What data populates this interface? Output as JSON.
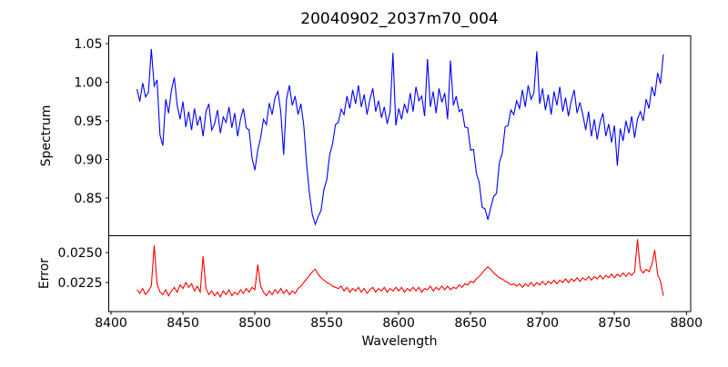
{
  "figure": {
    "title": "20040902_2037m70_004",
    "background_color": "#ffffff",
    "spine_color": "#000000",
    "text_color": "#000000"
  },
  "x_axis": {
    "label": "Wavelength",
    "ticks": [
      8400,
      8450,
      8500,
      8550,
      8600,
      8650,
      8700,
      8750,
      8800
    ],
    "tick_labels": [
      "8400",
      "8450",
      "8500",
      "8550",
      "8600",
      "8650",
      "8700",
      "8750",
      "8800"
    ],
    "xlim": [
      8398.4,
      8803.0
    ]
  },
  "chart_data": [
    {
      "type": "line",
      "panel": "spectrum",
      "title": "20040902_2037m70_004",
      "xlabel": "Wavelength",
      "ylabel": "Spectrum",
      "legend": null,
      "grid": false,
      "line_color": "#0000ff",
      "xlim": [
        8398.4,
        8803.0
      ],
      "ylim": [
        0.8012,
        1.06
      ],
      "yticks": [
        0.85,
        0.9,
        0.95,
        1.0,
        1.05
      ],
      "ytick_labels": [
        "0.85",
        "0.90",
        "0.95",
        "1.00",
        "1.05"
      ],
      "x_start": 8418,
      "x_step": 2,
      "n_points": 184,
      "features_note": "noisy stellar spectrum, continuum ~0.98; broad shallow depression 8455-8495 (~0.95); absorption line 8500 (~0.89); deep absorption 8542 (min ~0.816); deep absorption 8662 (min ~0.822); shallow depression 8730-8766 (~0.93); rises to ~1.04 at 8784",
      "values": [
        0.991,
        0.975,
        0.999,
        0.981,
        0.987,
        1.043,
        0.995,
        1.003,
        0.932,
        0.918,
        0.978,
        0.96,
        0.99,
        1.006,
        0.97,
        0.952,
        0.975,
        0.942,
        0.962,
        0.938,
        0.966,
        0.944,
        0.956,
        0.93,
        0.962,
        0.972,
        0.938,
        0.946,
        0.964,
        0.934,
        0.955,
        0.948,
        0.968,
        0.941,
        0.96,
        0.93,
        0.952,
        0.966,
        0.941,
        0.938,
        0.902,
        0.886,
        0.912,
        0.928,
        0.952,
        0.945,
        0.973,
        0.958,
        0.98,
        0.988,
        0.962,
        0.906,
        0.978,
        0.996,
        0.97,
        0.982,
        0.958,
        0.972,
        0.944,
        0.893,
        0.855,
        0.828,
        0.816,
        0.826,
        0.834,
        0.861,
        0.874,
        0.906,
        0.92,
        0.945,
        0.948,
        0.965,
        0.958,
        0.982,
        0.966,
        0.99,
        0.972,
        0.996,
        0.968,
        0.984,
        0.958,
        0.978,
        0.992,
        0.962,
        0.976,
        0.954,
        0.968,
        0.946,
        0.962,
        1.038,
        0.944,
        0.966,
        0.952,
        0.972,
        0.96,
        0.986,
        0.962,
        0.994,
        0.976,
        0.982,
        0.956,
        1.03,
        0.968,
        0.988,
        0.96,
        0.992,
        0.974,
        0.986,
        0.952,
        1.028,
        0.97,
        0.982,
        0.962,
        0.965,
        0.942,
        0.941,
        0.912,
        0.913,
        0.882,
        0.87,
        0.838,
        0.836,
        0.822,
        0.838,
        0.852,
        0.856,
        0.896,
        0.908,
        0.942,
        0.944,
        0.964,
        0.958,
        0.976,
        0.966,
        0.99,
        0.968,
        0.996,
        0.978,
        0.986,
        1.04,
        0.972,
        0.992,
        0.964,
        0.984,
        0.958,
        0.988,
        0.97,
        0.994,
        0.962,
        0.98,
        0.956,
        0.976,
        0.99,
        0.96,
        0.974,
        0.958,
        0.938,
        0.962,
        0.93,
        0.952,
        0.926,
        0.948,
        0.96,
        0.93,
        0.946,
        0.922,
        0.944,
        0.892,
        0.94,
        0.924,
        0.95,
        0.934,
        0.956,
        0.928,
        0.952,
        0.962,
        0.95,
        0.978,
        0.966,
        0.994,
        0.982,
        1.012,
        0.998,
        1.036
      ]
    },
    {
      "type": "line",
      "panel": "error",
      "title": "",
      "xlabel": "Wavelength",
      "ylabel": "Error",
      "legend": null,
      "grid": false,
      "line_color": "#ff0000",
      "xlim": [
        8398.4,
        8803.0
      ],
      "ylim": [
        0.02008,
        0.0264
      ],
      "yticks": [
        0.0225,
        0.025
      ],
      "ytick_labels": [
        "0.0225",
        "0.0250"
      ],
      "x_start": 8418,
      "x_step": 2,
      "n_points": 184,
      "features_note": "error spectrum ~0.0218 baseline; narrow spikes at 8430 (0.0256), 8464 (0.0247), 8502 (0.0240); broad bumps at 8542 (0.0236) and 8662 (0.0238); slow rise to ~0.0232 near 8760; spikes 8766 (0.0261) and 8778 (0.0252); drops to 0.0214 at end",
      "values": [
        0.0219,
        0.0216,
        0.022,
        0.0215,
        0.0218,
        0.0222,
        0.0256,
        0.0224,
        0.0217,
        0.0215,
        0.0219,
        0.0214,
        0.0218,
        0.0221,
        0.0217,
        0.0223,
        0.022,
        0.0225,
        0.0221,
        0.0224,
        0.0218,
        0.0222,
        0.0217,
        0.0247,
        0.022,
        0.0215,
        0.0218,
        0.0214,
        0.0217,
        0.0213,
        0.0218,
        0.0215,
        0.0219,
        0.0214,
        0.0217,
        0.0215,
        0.0219,
        0.0216,
        0.022,
        0.0217,
        0.0221,
        0.0219,
        0.024,
        0.0222,
        0.0217,
        0.0214,
        0.0218,
        0.0215,
        0.0219,
        0.0216,
        0.022,
        0.0216,
        0.0219,
        0.0215,
        0.0218,
        0.0216,
        0.022,
        0.0222,
        0.0225,
        0.0228,
        0.0231,
        0.0234,
        0.0236,
        0.0232,
        0.0229,
        0.0227,
        0.0225,
        0.0224,
        0.0222,
        0.0221,
        0.022,
        0.0222,
        0.0218,
        0.0221,
        0.0217,
        0.022,
        0.0218,
        0.0221,
        0.0217,
        0.022,
        0.0216,
        0.0219,
        0.0221,
        0.0217,
        0.022,
        0.0218,
        0.0221,
        0.0217,
        0.022,
        0.0218,
        0.0221,
        0.0218,
        0.0221,
        0.0217,
        0.022,
        0.0218,
        0.0221,
        0.0218,
        0.0221,
        0.0217,
        0.022,
        0.0219,
        0.0222,
        0.0218,
        0.0221,
        0.0219,
        0.0222,
        0.0219,
        0.0222,
        0.0219,
        0.0221,
        0.022,
        0.0223,
        0.0221,
        0.0224,
        0.0223,
        0.0226,
        0.0225,
        0.0228,
        0.023,
        0.0233,
        0.0236,
        0.0238,
        0.0236,
        0.0233,
        0.0231,
        0.0229,
        0.0228,
        0.0226,
        0.0225,
        0.0223,
        0.0224,
        0.0222,
        0.0224,
        0.0221,
        0.0224,
        0.0222,
        0.0225,
        0.0222,
        0.0225,
        0.0223,
        0.0226,
        0.0223,
        0.0226,
        0.0224,
        0.0227,
        0.0224,
        0.0227,
        0.0225,
        0.0228,
        0.0225,
        0.0228,
        0.0226,
        0.0229,
        0.0226,
        0.0229,
        0.0227,
        0.023,
        0.0227,
        0.023,
        0.0228,
        0.0231,
        0.0228,
        0.0231,
        0.0229,
        0.0232,
        0.0229,
        0.0232,
        0.023,
        0.0233,
        0.023,
        0.0233,
        0.0231,
        0.0234,
        0.0261,
        0.0236,
        0.0233,
        0.0236,
        0.0234,
        0.024,
        0.0252,
        0.0232,
        0.0226,
        0.0214
      ]
    }
  ]
}
